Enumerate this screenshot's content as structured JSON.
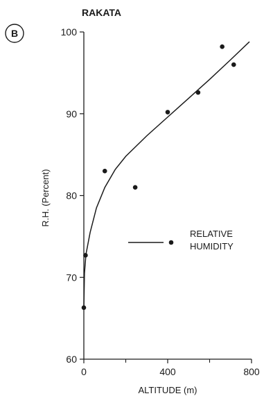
{
  "chart_data": {
    "type": "scatter",
    "panel_label": "B",
    "title": "RAKATA",
    "xlabel": "ALTITUDE (m)",
    "ylabel": "R.H. (Percent)",
    "xlim": [
      0,
      800
    ],
    "ylim": [
      60,
      100
    ],
    "x_ticks": [
      0,
      400,
      800
    ],
    "x_minor_ticks": [
      200,
      600
    ],
    "y_ticks": [
      60,
      70,
      80,
      90,
      100
    ],
    "grid": false,
    "legend": {
      "position": "center-right",
      "label_lines": [
        "RELATIVE",
        "HUMIDITY"
      ]
    },
    "series": [
      {
        "type": "scatter",
        "points": [
          {
            "x": 0,
            "y": 66.3
          },
          {
            "x": 8,
            "y": 72.7
          },
          {
            "x": 100,
            "y": 83.0
          },
          {
            "x": 245,
            "y": 81.0
          },
          {
            "x": 400,
            "y": 90.2
          },
          {
            "x": 545,
            "y": 92.6
          },
          {
            "x": 660,
            "y": 98.2
          },
          {
            "x": 715,
            "y": 96.0
          }
        ]
      },
      {
        "type": "line",
        "points": [
          {
            "x": 0,
            "y": 66.3
          },
          {
            "x": 3,
            "y": 70.5
          },
          {
            "x": 10,
            "y": 72.8
          },
          {
            "x": 30,
            "y": 75.5
          },
          {
            "x": 60,
            "y": 78.5
          },
          {
            "x": 100,
            "y": 81.0
          },
          {
            "x": 150,
            "y": 83.2
          },
          {
            "x": 200,
            "y": 84.8
          },
          {
            "x": 300,
            "y": 87.3
          },
          {
            "x": 400,
            "y": 89.6
          },
          {
            "x": 500,
            "y": 91.9
          },
          {
            "x": 600,
            "y": 94.2
          },
          {
            "x": 700,
            "y": 96.6
          },
          {
            "x": 790,
            "y": 98.8
          }
        ]
      }
    ]
  }
}
